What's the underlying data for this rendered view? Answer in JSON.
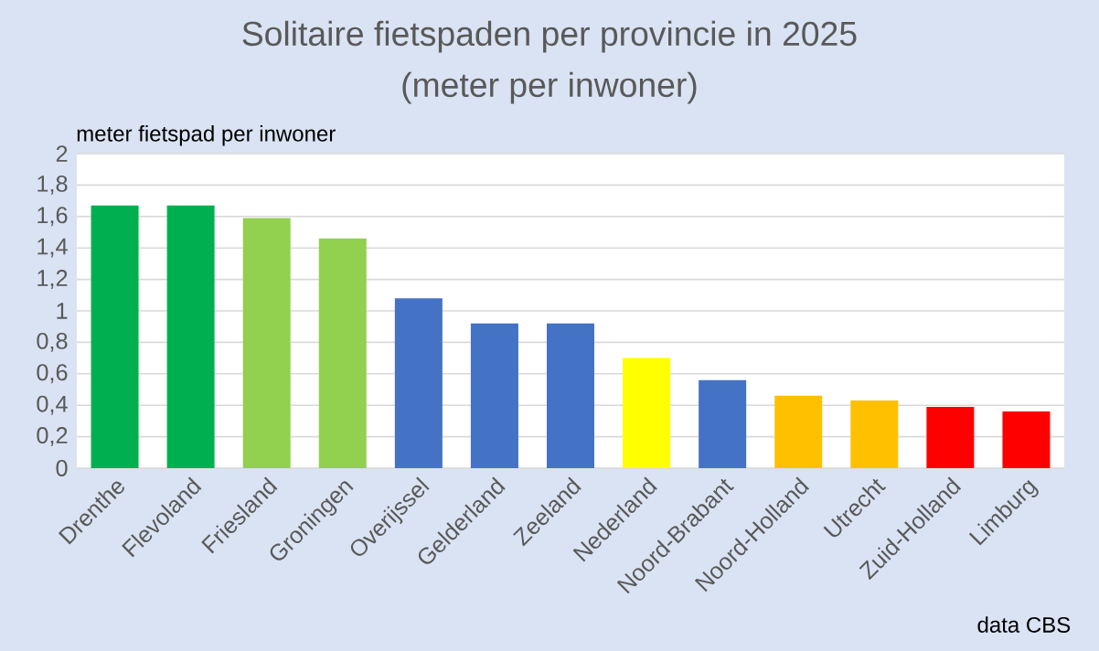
{
  "chart_data": {
    "type": "bar",
    "title": "Solitaire fietspaden per provincie in 2025",
    "subtitle": "(meter per inwoner)",
    "ylabel": "meter fietspad per inwoner",
    "categories": [
      "Drenthe",
      "Flevoland",
      "Friesland",
      "Groningen",
      "Overijssel",
      "Gelderland",
      "Zeeland",
      "Nederland",
      "Noord-Brabant",
      "Noord-Holland",
      "Utrecht",
      "Zuid-Holland",
      "Limburg"
    ],
    "values": [
      1.67,
      1.67,
      1.59,
      1.46,
      1.08,
      0.92,
      0.92,
      0.7,
      0.56,
      0.46,
      0.43,
      0.39,
      0.36
    ],
    "colors": [
      "#00b050",
      "#00b050",
      "#92d050",
      "#92d050",
      "#4472c4",
      "#4472c4",
      "#4472c4",
      "#ffff00",
      "#4472c4",
      "#ffc000",
      "#ffc000",
      "#ff0000",
      "#ff0000"
    ],
    "ylim": [
      0,
      2
    ],
    "yticks": [
      0,
      {
        "value": 0.2,
        "label": "0,2"
      },
      {
        "value": 0.4,
        "label": "0,4"
      },
      {
        "value": 0.6,
        "label": "0,6"
      },
      {
        "value": 0.8,
        "label": "0,8"
      },
      1,
      {
        "value": 1.2,
        "label": "1,2"
      },
      {
        "value": 1.4,
        "label": "1,4"
      },
      {
        "value": 1.6,
        "label": "1,6"
      },
      {
        "value": 1.8,
        "label": "1,8"
      },
      2
    ],
    "grid": "y",
    "annotations": [
      "data CBS"
    ]
  }
}
